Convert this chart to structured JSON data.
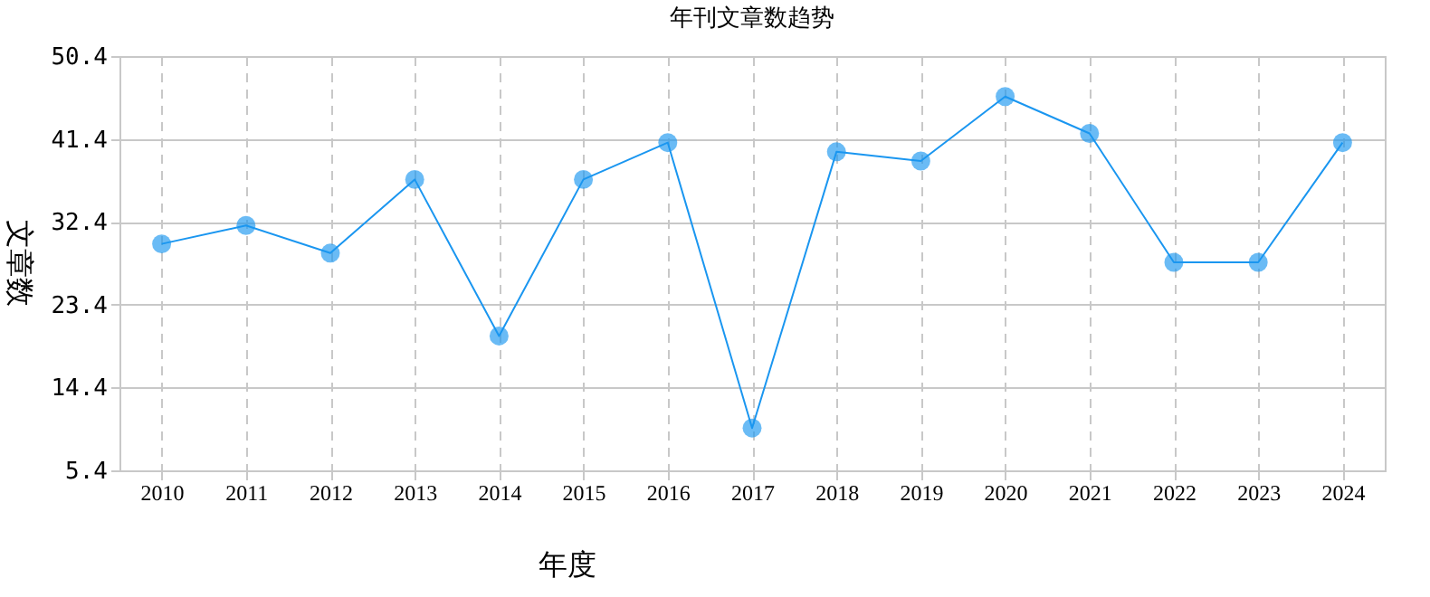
{
  "chart_data": {
    "type": "line",
    "title": "年刊文章数趋势",
    "xlabel": "年度",
    "ylabel": "文章数",
    "categories": [
      "2010",
      "2011",
      "2012",
      "2013",
      "2014",
      "2015",
      "2016",
      "2017",
      "2018",
      "2019",
      "2020",
      "2021",
      "2022",
      "2023",
      "2024"
    ],
    "series": [
      {
        "color": "#1a96f0",
        "values": [
          30,
          32,
          29,
          37,
          20,
          37,
          41,
          10,
          40,
          39,
          46,
          42,
          28,
          28,
          41
        ]
      }
    ],
    "ylim": [
      5.4,
      50.4
    ],
    "yticks": [
      5.4,
      14.4,
      23.4,
      32.4,
      41.4,
      50.4
    ],
    "grid": true,
    "marker": "circle",
    "line_style": "solid"
  }
}
